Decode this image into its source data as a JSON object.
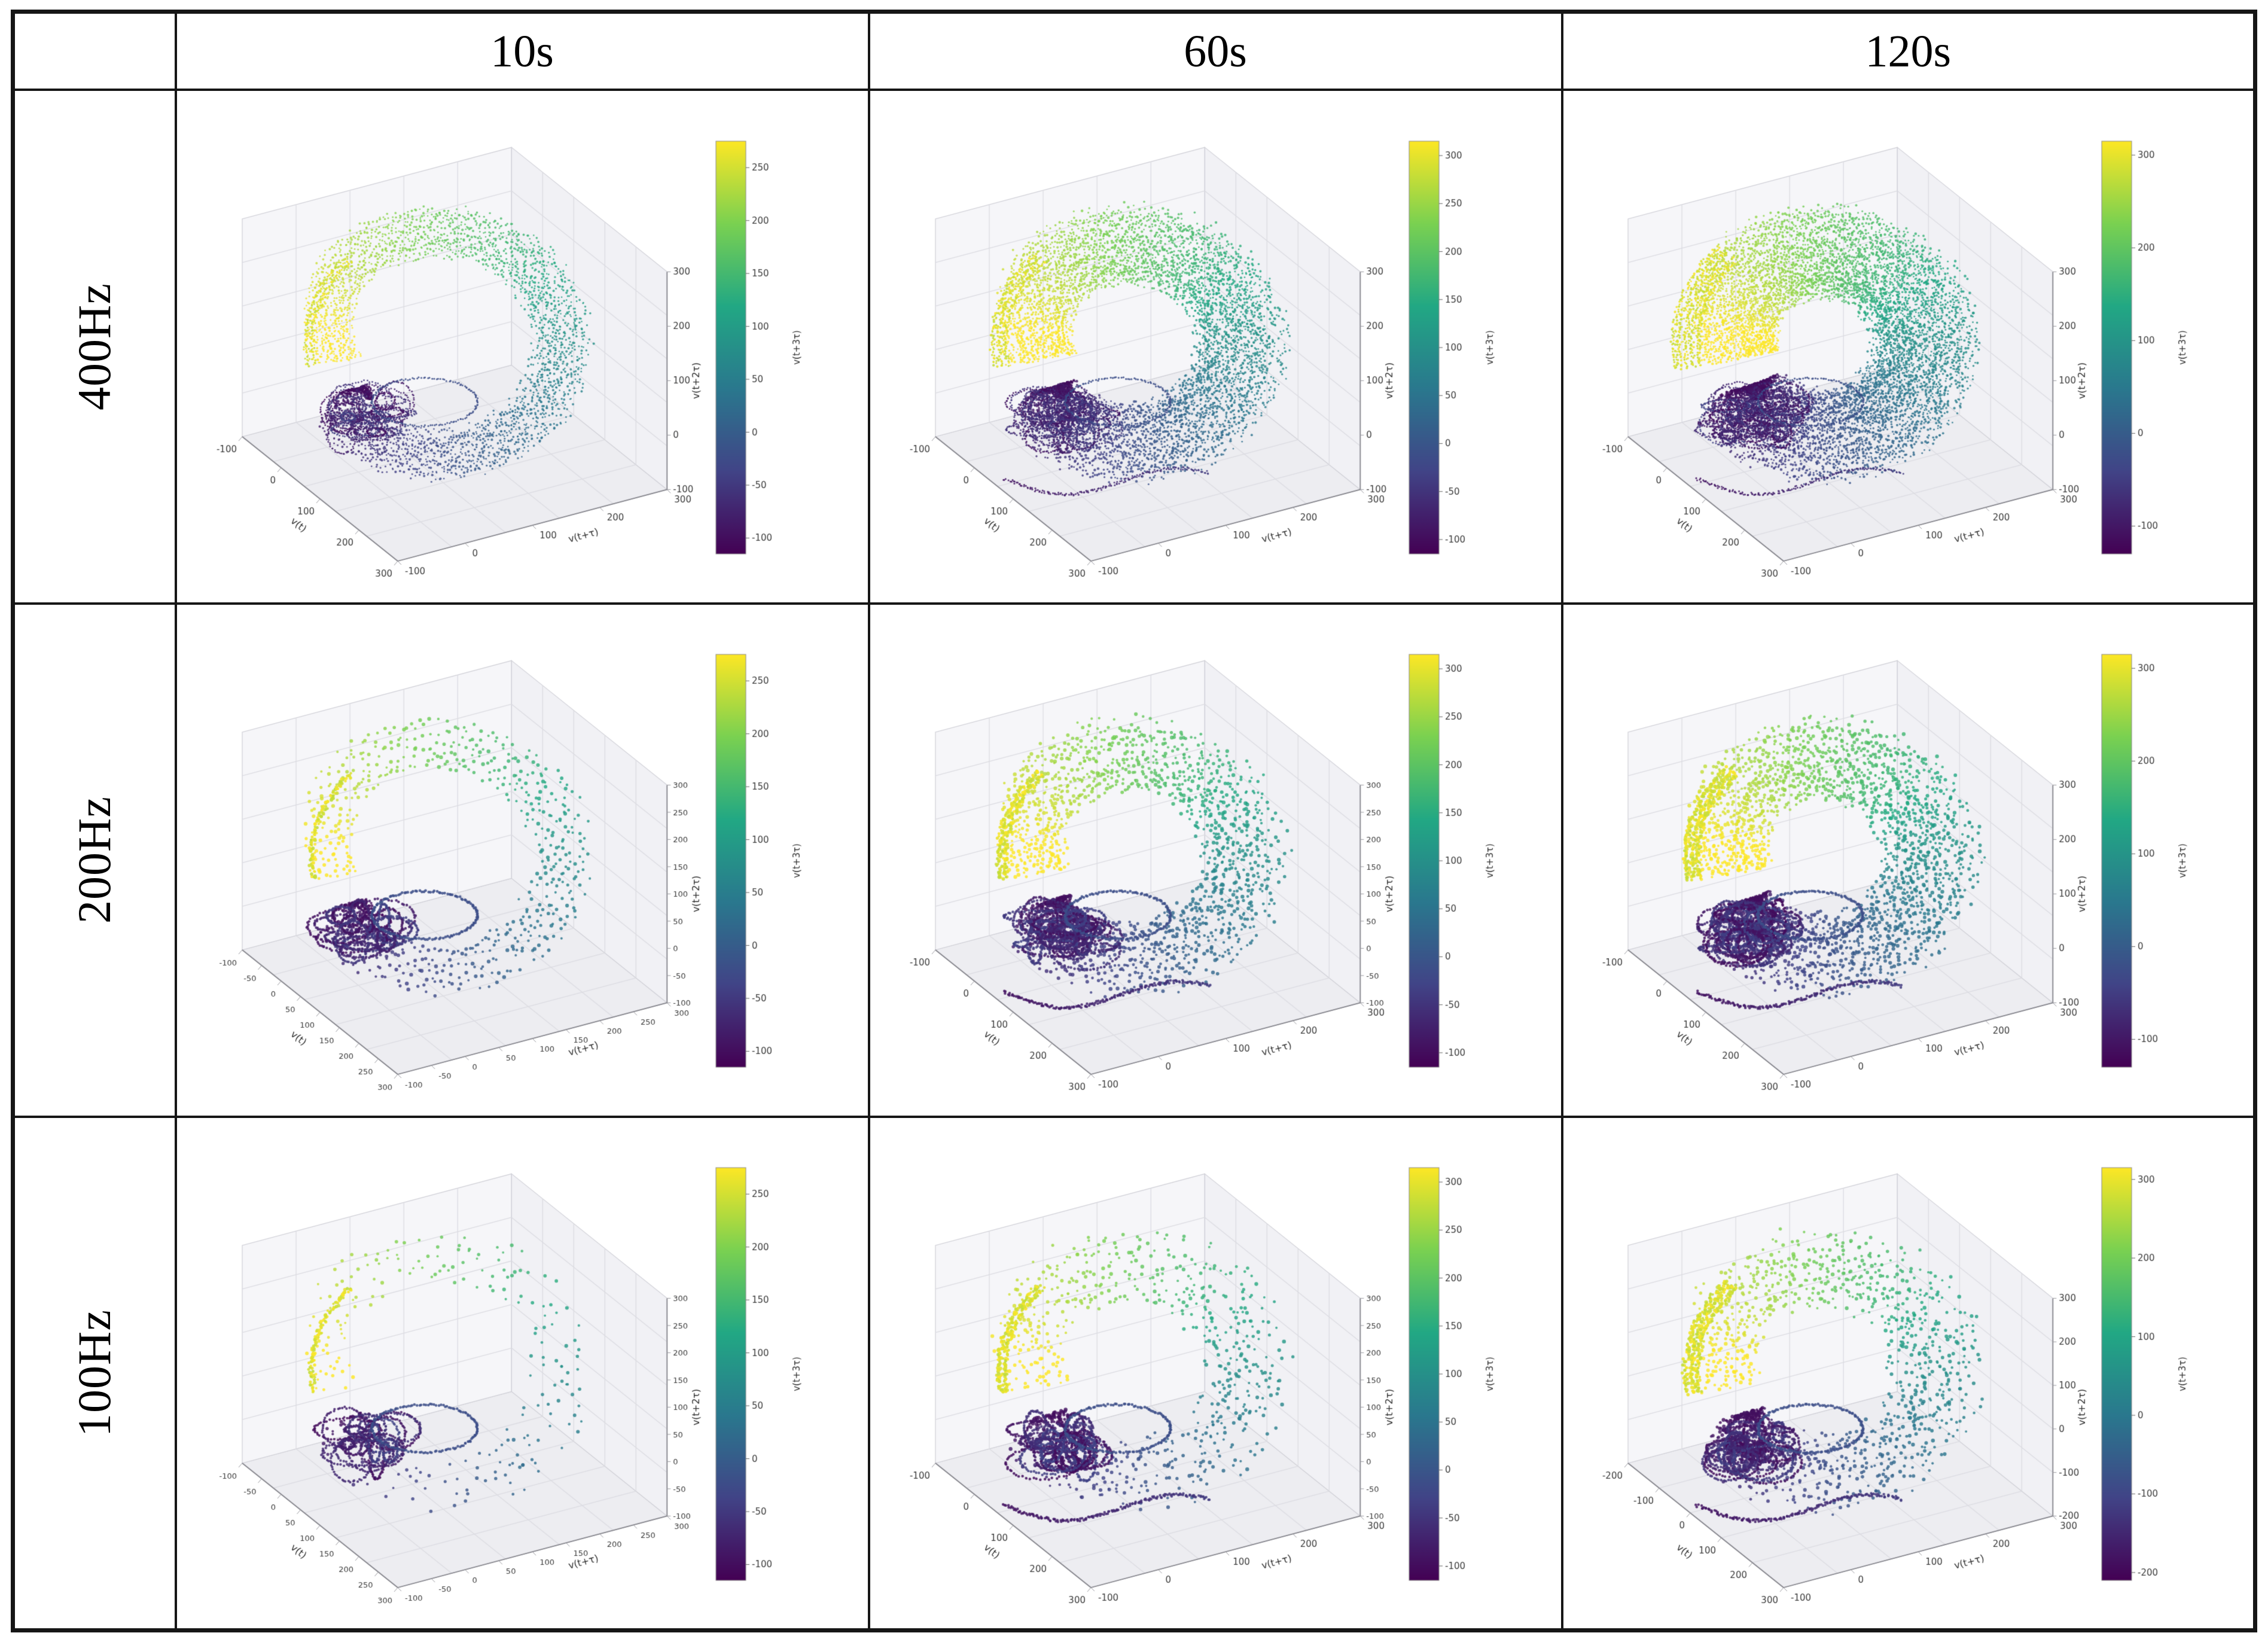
{
  "table": {
    "col_headers": [
      "10s",
      "60s",
      "120s"
    ],
    "row_headers": [
      "400Hz",
      "200Hz",
      "100Hz"
    ]
  },
  "axes": {
    "xlabel": "v(t)",
    "ylabel": "v(t+τ)",
    "zlabel": "v(t+2τ)",
    "cbar_label": "v(t+3τ)",
    "colormap": "viridis"
  },
  "colors": {
    "viridis_stops": [
      "#440154",
      "#414487",
      "#2a788e",
      "#22a884",
      "#7ad151",
      "#fde725"
    ],
    "floor": "#ededf1",
    "wall": "#f6f6f9",
    "wall2": "#f1f1f5",
    "grid": "#dcdce2",
    "pane_edge": "#cfcfd6",
    "tick_text": "#3a3a3a",
    "label_text": "#2f2f2f",
    "table_border": "#161616"
  },
  "chart_data": [
    {
      "row": "400Hz",
      "col": "10s",
      "type": "scatter",
      "projection": "3d",
      "grid": true,
      "x_ticks": [
        -100,
        0,
        100,
        200,
        300
      ],
      "y_ticks": [
        -100,
        0,
        100,
        200,
        300
      ],
      "z_ticks": [
        -100,
        0,
        100,
        200,
        300
      ],
      "cbar_ticks": [
        250,
        200,
        150,
        100,
        50,
        0,
        -50,
        -100
      ],
      "cbar_range": [
        -115,
        275
      ],
      "xlim": [
        -150,
        320
      ],
      "ylim": [
        -150,
        320
      ],
      "zlim": [
        -150,
        320
      ],
      "description": "Delay-embedded phase portrait: toroidal ribbon of fine dots, several interleaved orbits, dense dark tangle of small loops at lower-left, bright yellow streak on left limb; color encodes v(t+3τ) from dark purple (low) to yellow (high).",
      "render": {
        "strands": 13,
        "ppr": 240,
        "spokes": 0,
        "dot": 1.7,
        "jitter": 6,
        "dropout": 0.04,
        "cluster": 26,
        "band": 2,
        "tail": false,
        "spread": 0.026
      }
    },
    {
      "row": "400Hz",
      "col": "60s",
      "type": "scatter",
      "projection": "3d",
      "grid": true,
      "x_ticks": [
        -100,
        0,
        100,
        200,
        300
      ],
      "y_ticks": [
        -100,
        0,
        100,
        200,
        300
      ],
      "z_ticks": [
        -100,
        0,
        100,
        200,
        300
      ],
      "cbar_ticks": [
        300,
        250,
        200,
        150,
        100,
        50,
        0,
        -50,
        -100
      ],
      "cbar_range": [
        -115,
        315
      ],
      "xlim": [
        -150,
        320
      ],
      "ylim": [
        -150,
        320
      ],
      "zlim": [
        -150,
        320
      ],
      "description": "Dense full torus of dots covering the attractor; dark purple tail sweeping along the bottom; dark cluster of loops at lower-left.",
      "render": {
        "strands": 22,
        "ppr": 260,
        "spokes": 0,
        "dot": 1.8,
        "jitter": 9,
        "dropout": 0.02,
        "cluster": 36,
        "band": 3,
        "tail": true,
        "spread": 0.024
      }
    },
    {
      "row": "400Hz",
      "col": "120s",
      "type": "scatter",
      "projection": "3d",
      "grid": true,
      "x_ticks": [
        -100,
        0,
        100,
        200,
        300
      ],
      "y_ticks": [
        -100,
        0,
        100,
        200,
        300
      ],
      "z_ticks": [
        -100,
        0,
        100,
        200,
        300
      ],
      "cbar_ticks": [
        300,
        200,
        100,
        0,
        -100
      ],
      "cbar_range": [
        -130,
        315
      ],
      "xlim": [
        -150,
        320
      ],
      "ylim": [
        -150,
        320
      ],
      "zlim": [
        -150,
        320
      ],
      "description": "Very dense, nearly solid toroidal ribbon; broad bright yellow band on the left limb; teal/blue right side; dark cluster and purple tail lower-left.",
      "render": {
        "strands": 30,
        "ppr": 270,
        "spokes": 0,
        "dot": 1.8,
        "jitter": 10,
        "dropout": 0.02,
        "cluster": 44,
        "band": 5,
        "tail": true,
        "spread": 0.021
      }
    },
    {
      "row": "200Hz",
      "col": "10s",
      "type": "scatter",
      "projection": "3d",
      "grid": true,
      "x_ticks": [
        -100,
        -50,
        0,
        50,
        100,
        150,
        200,
        250,
        300
      ],
      "y_ticks": [
        -100,
        -50,
        0,
        50,
        100,
        150,
        200,
        250,
        300
      ],
      "z_ticks": [
        -100,
        -50,
        0,
        50,
        100,
        150,
        200,
        250,
        300
      ],
      "cbar_ticks": [
        250,
        200,
        150,
        100,
        50,
        0,
        -50,
        -100
      ],
      "cbar_range": [
        -115,
        275
      ],
      "xlim": [
        -130,
        310
      ],
      "ylim": [
        -130,
        310
      ],
      "zlim": [
        -130,
        310
      ],
      "description": "Sparser ring made of coarse dots aligned in radial spokes; few orbits; dark tangle of loops lower-left.",
      "render": {
        "strands": 7,
        "ppr": 0,
        "spokes": 110,
        "dot": 2.6,
        "jitter": 7,
        "dropout": 0.12,
        "cluster": 20,
        "band": 1,
        "tail": false,
        "spread": 0.05
      }
    },
    {
      "row": "200Hz",
      "col": "60s",
      "type": "scatter",
      "projection": "3d",
      "grid": true,
      "x_ticks": [
        -100,
        0,
        100,
        200,
        300
      ],
      "y_ticks": [
        -100,
        0,
        100,
        200,
        300
      ],
      "z_ticks": [
        -100,
        -50,
        0,
        50,
        100,
        150,
        200,
        250,
        300
      ],
      "cbar_ticks": [
        300,
        250,
        200,
        150,
        100,
        50,
        0,
        -50,
        -100
      ],
      "cbar_range": [
        -115,
        315
      ],
      "xlim": [
        -150,
        320
      ],
      "ylim": [
        -150,
        320
      ],
      "zlim": [
        -150,
        320
      ],
      "description": "Fuller spoked torus of coarse dots; yellow-green left limb, teal-blue right limb; dark cluster plus purple tail at bottom-left.",
      "render": {
        "strands": 13,
        "ppr": 0,
        "spokes": 140,
        "dot": 2.6,
        "jitter": 10,
        "dropout": 0.06,
        "cluster": 32,
        "band": 2,
        "tail": true,
        "spread": 0.038
      }
    },
    {
      "row": "200Hz",
      "col": "120s",
      "type": "scatter",
      "projection": "3d",
      "grid": true,
      "x_ticks": [
        -100,
        0,
        100,
        200,
        300
      ],
      "y_ticks": [
        -100,
        0,
        100,
        200,
        300
      ],
      "z_ticks": [
        -100,
        0,
        100,
        200,
        300
      ],
      "cbar_ticks": [
        300,
        200,
        100,
        0,
        -100
      ],
      "cbar_range": [
        -130,
        315
      ],
      "xlim": [
        -150,
        320
      ],
      "ylim": [
        -150,
        320
      ],
      "zlim": [
        -150,
        320
      ],
      "description": "Dense spoked torus of coarse dots filling the attractor; dark cluster of loops and purple tail lower-left.",
      "render": {
        "strands": 17,
        "ppr": 0,
        "spokes": 150,
        "dot": 2.6,
        "jitter": 11,
        "dropout": 0.04,
        "cluster": 38,
        "band": 3,
        "tail": true,
        "spread": 0.032
      }
    },
    {
      "row": "100Hz",
      "col": "10s",
      "type": "scatter",
      "projection": "3d",
      "grid": true,
      "x_ticks": [
        -100,
        -50,
        0,
        50,
        100,
        150,
        200,
        250,
        300
      ],
      "y_ticks": [
        -100,
        -50,
        0,
        50,
        100,
        150,
        200,
        250,
        300
      ],
      "z_ticks": [
        -100,
        -50,
        0,
        50,
        100,
        150,
        200,
        250,
        300
      ],
      "cbar_ticks": [
        250,
        200,
        150,
        100,
        50,
        0,
        -50,
        -100
      ],
      "cbar_range": [
        -115,
        275
      ],
      "xlim": [
        -130,
        310
      ],
      "ylim": [
        -130,
        310
      ],
      "zlim": [
        -130,
        310
      ],
      "description": "Very sparse dotted ring with large gaps; isolated scattered dots trace the torus outline; dark tangle of loops lower-left.",
      "render": {
        "strands": 5,
        "ppr": 0,
        "spokes": 85,
        "dot": 2.5,
        "jitter": 11,
        "dropout": 0.42,
        "cluster": 18,
        "band": 1,
        "tail": false,
        "spread": 0.07
      }
    },
    {
      "row": "100Hz",
      "col": "60s",
      "type": "scatter",
      "projection": "3d",
      "grid": true,
      "x_ticks": [
        -100,
        0,
        100,
        200,
        300
      ],
      "y_ticks": [
        -100,
        0,
        100,
        200,
        300
      ],
      "z_ticks": [
        -100,
        -50,
        0,
        50,
        100,
        150,
        200,
        250,
        300
      ],
      "cbar_ticks": [
        300,
        250,
        200,
        150,
        100,
        50,
        0,
        -50,
        -100
      ],
      "cbar_range": [
        -115,
        315
      ],
      "xlim": [
        -150,
        320
      ],
      "ylim": [
        -150,
        320
      ],
      "zlim": [
        -150,
        320
      ],
      "description": "Scattered cloud of coarse dots forming the torus with noticeable gaps; dark cluster and purple tail at bottom-left.",
      "render": {
        "strands": 9,
        "ppr": 0,
        "spokes": 115,
        "dot": 2.6,
        "jitter": 15,
        "dropout": 0.28,
        "cluster": 26,
        "band": 2,
        "tail": true,
        "spread": 0.05
      }
    },
    {
      "row": "100Hz",
      "col": "120s",
      "type": "scatter",
      "projection": "3d",
      "grid": true,
      "x_ticks": [
        -200,
        -100,
        0,
        100,
        200,
        300
      ],
      "y_ticks": [
        -100,
        0,
        100,
        200,
        300
      ],
      "z_ticks": [
        -200,
        -100,
        0,
        100,
        200,
        300
      ],
      "cbar_ticks": [
        300,
        200,
        100,
        0,
        -100,
        -200
      ],
      "cbar_range": [
        -210,
        315
      ],
      "xlim": [
        -250,
        320
      ],
      "ylim": [
        -150,
        320
      ],
      "zlim": [
        -250,
        320
      ],
      "description": "Denser scattered torus of coarse dots; bright yellow left limb; extended range down to -200; dark cluster and long purple tail lower-left.",
      "render": {
        "strands": 12,
        "ppr": 0,
        "spokes": 125,
        "dot": 2.6,
        "jitter": 15,
        "dropout": 0.18,
        "cluster": 30,
        "band": 3,
        "tail": true,
        "spread": 0.04
      }
    }
  ]
}
